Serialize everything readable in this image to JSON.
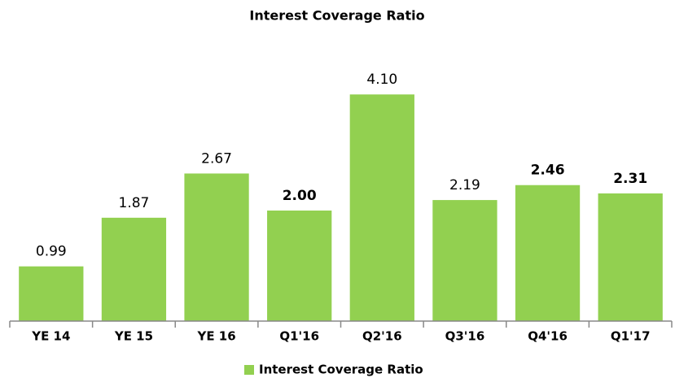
{
  "chart_data": {
    "type": "bar",
    "title": "Interest Coverage Ratio",
    "categories": [
      "YE 14",
      "YE 15",
      "YE 16",
      "Q1'16",
      "Q2'16",
      "Q3'16",
      "Q4'16",
      "Q1'17"
    ],
    "series": [
      {
        "name": "Interest Coverage Ratio",
        "color": "#92d050",
        "values": [
          0.99,
          1.87,
          2.67,
          2.0,
          4.1,
          2.19,
          2.46,
          2.31
        ],
        "value_labels": [
          "0.99",
          "1.87",
          "2.67",
          "2.00",
          "4.10",
          "2.19",
          "2.46",
          "2.31"
        ],
        "value_label_bold": [
          false,
          false,
          false,
          true,
          false,
          false,
          true,
          true
        ]
      }
    ],
    "ylim": [
      0,
      5
    ],
    "legend": "bottom"
  }
}
